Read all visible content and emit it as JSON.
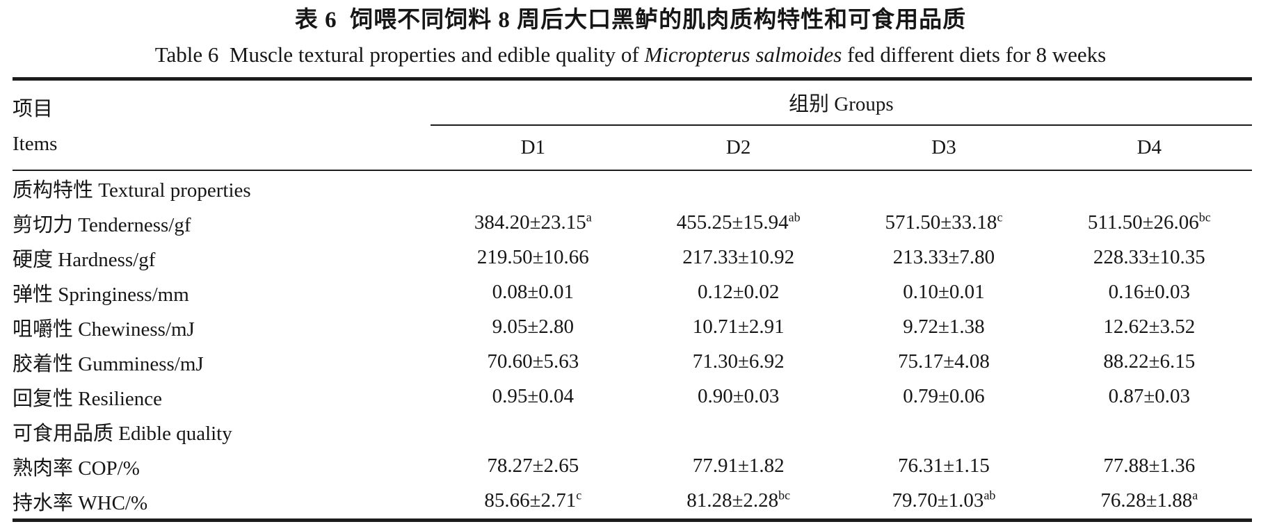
{
  "title": {
    "zh": "表 6  饲喂不同饲料 8 周后大口黑鲈的肌肉质构特性和可食用品质",
    "en_prefix": "Table 6  Muscle textural properties and edible quality of ",
    "en_species": "Micropterus salmoides",
    "en_suffix": " fed different diets for 8 weeks"
  },
  "header": {
    "items_zh": "项目",
    "items_en": "Items",
    "groups_label": "组别 Groups",
    "columns": [
      "D1",
      "D2",
      "D3",
      "D4"
    ]
  },
  "chart_data": {
    "type": "table",
    "title_zh": "表 6  饲喂不同饲料 8 周后大口黑鲈的肌肉质构特性和可食用品质",
    "title_en": "Table 6  Muscle textural properties and edible quality of Micropterus salmoides fed different diets for 8 weeks",
    "columns": [
      "D1",
      "D2",
      "D3",
      "D4"
    ],
    "rows": [
      {
        "type": "section",
        "label": "质构特性 Textural properties",
        "cells": [
          {
            "text": ""
          },
          {
            "text": ""
          },
          {
            "text": ""
          },
          {
            "text": ""
          }
        ]
      },
      {
        "type": "data",
        "label": "剪切力 Tenderness/gf",
        "cells": [
          {
            "text": "384.20±23.15",
            "sup": "a"
          },
          {
            "text": "455.25±15.94",
            "sup": "ab"
          },
          {
            "text": "571.50±33.18",
            "sup": "c"
          },
          {
            "text": "511.50±26.06",
            "sup": "bc"
          }
        ]
      },
      {
        "type": "data",
        "label": "硬度 Hardness/gf",
        "cells": [
          {
            "text": "219.50±10.66"
          },
          {
            "text": "217.33±10.92"
          },
          {
            "text": "213.33±7.80"
          },
          {
            "text": "228.33±10.35"
          }
        ]
      },
      {
        "type": "data",
        "label": "弹性 Springiness/mm",
        "cells": [
          {
            "text": "0.08±0.01"
          },
          {
            "text": "0.12±0.02"
          },
          {
            "text": "0.10±0.01"
          },
          {
            "text": "0.16±0.03"
          }
        ]
      },
      {
        "type": "data",
        "label": "咀嚼性 Chewiness/mJ",
        "cells": [
          {
            "text": "9.05±2.80"
          },
          {
            "text": "10.71±2.91"
          },
          {
            "text": "9.72±1.38"
          },
          {
            "text": "12.62±3.52"
          }
        ]
      },
      {
        "type": "data",
        "label": "胶着性 Gumminess/mJ",
        "cells": [
          {
            "text": "70.60±5.63"
          },
          {
            "text": "71.30±6.92"
          },
          {
            "text": "75.17±4.08"
          },
          {
            "text": "88.22±6.15"
          }
        ]
      },
      {
        "type": "data",
        "label": "回复性 Resilience",
        "cells": [
          {
            "text": "0.95±0.04"
          },
          {
            "text": "0.90±0.03"
          },
          {
            "text": "0.79±0.06"
          },
          {
            "text": "0.87±0.03"
          }
        ]
      },
      {
        "type": "section",
        "label": "可食用品质 Edible quality",
        "cells": [
          {
            "text": ""
          },
          {
            "text": ""
          },
          {
            "text": ""
          },
          {
            "text": ""
          }
        ]
      },
      {
        "type": "data",
        "label": "熟肉率 COP/%",
        "cells": [
          {
            "text": "78.27±2.65"
          },
          {
            "text": "77.91±1.82"
          },
          {
            "text": "76.31±1.15"
          },
          {
            "text": "77.88±1.36"
          }
        ]
      },
      {
        "type": "data",
        "label": "持水率 WHC/%",
        "cells": [
          {
            "text": "85.66±2.71",
            "sup": "c"
          },
          {
            "text": "81.28±2.28",
            "sup": "bc"
          },
          {
            "text": "79.70±1.03",
            "sup": "ab"
          },
          {
            "text": "76.28±1.88",
            "sup": "a"
          }
        ]
      }
    ]
  }
}
